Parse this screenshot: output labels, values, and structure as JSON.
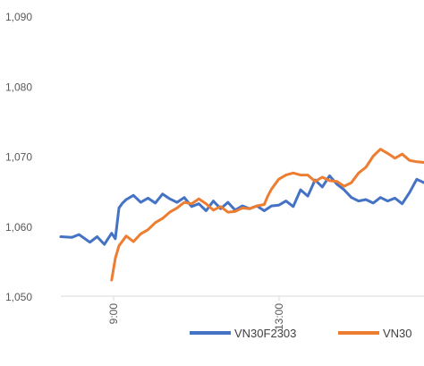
{
  "chart_data": {
    "type": "line",
    "ylim": [
      1050,
      1090
    ],
    "y_ticks": [
      "1,050",
      "1,060",
      "1,070",
      "1,080",
      "1,090"
    ],
    "x_ticks": [
      "9:00",
      "13:00"
    ],
    "xlim": [
      0,
      100
    ],
    "grid": false,
    "legend_position": "bottom",
    "series": [
      {
        "name": "VN30F2303",
        "color": "#4472C4",
        "x": [
          0,
          3,
          5,
          8,
          10,
          12,
          14,
          15,
          16,
          17,
          18,
          20,
          22,
          24,
          26,
          28,
          30,
          32,
          34,
          36,
          38,
          40,
          42,
          44,
          46,
          48,
          50,
          52,
          54,
          56,
          58,
          60,
          62,
          64,
          66,
          68,
          70,
          72,
          74,
          76,
          78,
          80,
          82,
          84,
          86,
          88,
          90,
          92,
          94,
          96,
          98,
          100
        ],
        "y": [
          1058.5,
          1058.4,
          1058.8,
          1057.7,
          1058.5,
          1057.4,
          1059.0,
          1058.2,
          1062.6,
          1063.3,
          1063.8,
          1064.4,
          1063.4,
          1064.0,
          1063.3,
          1064.6,
          1063.9,
          1063.4,
          1064.1,
          1062.8,
          1063.2,
          1062.2,
          1063.6,
          1062.5,
          1063.4,
          1062.3,
          1062.9,
          1062.5,
          1062.9,
          1062.2,
          1062.9,
          1063.0,
          1063.6,
          1062.8,
          1065.2,
          1064.3,
          1066.6,
          1065.6,
          1067.2,
          1066.0,
          1065.2,
          1064.1,
          1063.6,
          1063.8,
          1063.3,
          1064.1,
          1063.6,
          1064.0,
          1063.2,
          1064.8,
          1066.7,
          1066.2
        ]
      },
      {
        "name": "VN30",
        "color": "#ED7D31",
        "x": [
          14,
          15,
          16,
          18,
          20,
          22,
          24,
          26,
          28,
          30,
          32,
          34,
          36,
          38,
          40,
          42,
          44,
          46,
          48,
          50,
          52,
          54,
          56,
          57,
          58,
          60,
          62,
          64,
          66,
          68,
          70,
          72,
          74,
          76,
          78,
          80,
          82,
          84,
          86,
          88,
          90,
          92,
          94,
          96,
          98,
          100
        ],
        "y": [
          1052.3,
          1055.4,
          1057.2,
          1058.6,
          1057.8,
          1058.9,
          1059.5,
          1060.5,
          1061.1,
          1062.0,
          1062.6,
          1063.4,
          1063.2,
          1063.9,
          1063.2,
          1062.3,
          1062.8,
          1062.0,
          1062.1,
          1062.6,
          1062.5,
          1062.9,
          1063.1,
          1064.3,
          1065.3,
          1066.7,
          1067.3,
          1067.6,
          1067.3,
          1067.3,
          1066.4,
          1067.0,
          1066.5,
          1066.4,
          1065.7,
          1066.2,
          1067.6,
          1068.4,
          1070.0,
          1071.0,
          1070.4,
          1069.7,
          1070.3,
          1069.4,
          1069.2,
          1069.1
        ]
      }
    ]
  }
}
